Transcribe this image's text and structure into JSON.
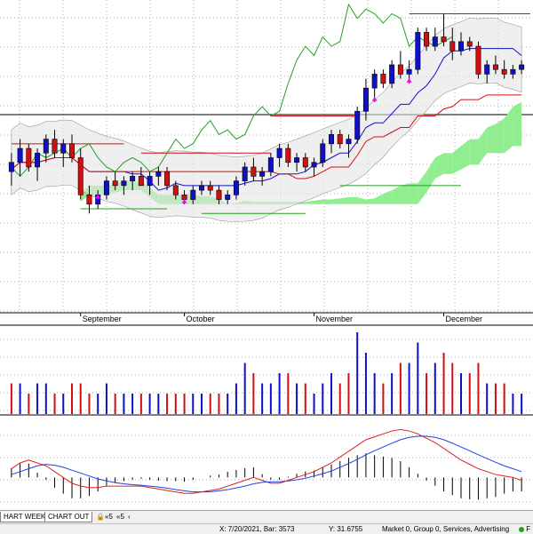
{
  "chart_data": [
    {
      "type": "candlestick",
      "title": "",
      "x_months": [
        "September",
        "October",
        "November",
        "December"
      ],
      "ylim": [
        29.2,
        35.8
      ],
      "grid": true,
      "candles": [
        [
          32.2,
          32.6,
          31.9,
          32.4
        ],
        [
          32.4,
          32.9,
          32.1,
          32.7
        ],
        [
          32.7,
          32.8,
          32.2,
          32.3
        ],
        [
          32.3,
          32.7,
          32.0,
          32.6
        ],
        [
          32.6,
          33.0,
          32.4,
          32.9
        ],
        [
          32.9,
          33.1,
          32.5,
          32.6
        ],
        [
          32.6,
          32.9,
          32.3,
          32.8
        ],
        [
          32.8,
          33.0,
          32.4,
          32.5
        ],
        [
          32.5,
          32.7,
          31.6,
          31.7
        ],
        [
          31.7,
          31.9,
          31.3,
          31.5
        ],
        [
          31.5,
          31.8,
          31.4,
          31.7
        ],
        [
          31.7,
          32.1,
          31.6,
          32.0
        ],
        [
          32.0,
          32.2,
          31.8,
          31.9
        ],
        [
          31.9,
          32.1,
          31.7,
          32.0
        ],
        [
          32.0,
          32.2,
          31.8,
          32.1
        ],
        [
          32.1,
          32.3,
          31.9,
          31.9
        ],
        [
          31.9,
          32.2,
          31.7,
          32.1
        ],
        [
          32.1,
          32.3,
          31.9,
          32.2
        ],
        [
          32.2,
          32.3,
          31.8,
          31.9
        ],
        [
          31.9,
          32.0,
          31.6,
          31.7
        ],
        [
          31.7,
          31.8,
          31.5,
          31.6
        ],
        [
          31.6,
          31.9,
          31.5,
          31.8
        ],
        [
          31.8,
          32.0,
          31.7,
          31.9
        ],
        [
          31.9,
          32.0,
          31.7,
          31.8
        ],
        [
          31.8,
          31.9,
          31.5,
          31.6
        ],
        [
          31.6,
          31.8,
          31.5,
          31.7
        ],
        [
          31.7,
          32.1,
          31.6,
          32.0
        ],
        [
          32.0,
          32.4,
          31.9,
          32.3
        ],
        [
          32.3,
          32.5,
          32.0,
          32.1
        ],
        [
          32.1,
          32.3,
          31.9,
          32.2
        ],
        [
          32.2,
          32.6,
          32.1,
          32.5
        ],
        [
          32.5,
          32.8,
          32.3,
          32.7
        ],
        [
          32.7,
          32.8,
          32.3,
          32.4
        ],
        [
          32.4,
          32.6,
          32.2,
          32.5
        ],
        [
          32.5,
          32.6,
          32.2,
          32.3
        ],
        [
          32.3,
          32.5,
          32.1,
          32.4
        ],
        [
          32.4,
          32.9,
          32.3,
          32.8
        ],
        [
          32.8,
          33.1,
          32.6,
          33.0
        ],
        [
          33.0,
          33.1,
          32.7,
          32.8
        ],
        [
          32.8,
          33.0,
          32.5,
          32.9
        ],
        [
          32.9,
          33.6,
          32.8,
          33.5
        ],
        [
          33.5,
          34.2,
          33.3,
          34.0
        ],
        [
          34.0,
          34.4,
          33.7,
          34.3
        ],
        [
          34.3,
          34.4,
          34.0,
          34.1
        ],
        [
          34.1,
          34.6,
          34.0,
          34.5
        ],
        [
          34.5,
          34.8,
          34.2,
          34.3
        ],
        [
          34.3,
          34.6,
          34.1,
          34.4
        ],
        [
          34.4,
          35.3,
          34.3,
          35.2
        ],
        [
          35.2,
          35.3,
          34.8,
          34.9
        ],
        [
          34.9,
          35.3,
          34.8,
          35.1
        ],
        [
          35.1,
          35.6,
          34.9,
          35.0
        ],
        [
          35.0,
          35.3,
          34.6,
          34.8
        ],
        [
          34.8,
          35.2,
          34.7,
          35.0
        ],
        [
          35.0,
          35.1,
          34.8,
          34.9
        ],
        [
          34.9,
          35.0,
          34.2,
          34.3
        ],
        [
          34.3,
          34.6,
          34.1,
          34.5
        ],
        [
          34.5,
          34.7,
          34.3,
          34.4
        ],
        [
          34.4,
          34.6,
          34.2,
          34.3
        ],
        [
          34.3,
          34.5,
          34.2,
          34.4
        ],
        [
          34.4,
          34.6,
          34.3,
          34.5
        ]
      ],
      "volume": [
        [
          3,
          "r"
        ],
        [
          3,
          "b"
        ],
        [
          2,
          "r"
        ],
        [
          3,
          "b"
        ],
        [
          3,
          "b"
        ],
        [
          2,
          "r"
        ],
        [
          2,
          "b"
        ],
        [
          3,
          "r"
        ],
        [
          3,
          "r"
        ],
        [
          2,
          "r"
        ],
        [
          2,
          "b"
        ],
        [
          3,
          "b"
        ],
        [
          2,
          "r"
        ],
        [
          2,
          "b"
        ],
        [
          2,
          "b"
        ],
        [
          2,
          "r"
        ],
        [
          2,
          "b"
        ],
        [
          2,
          "b"
        ],
        [
          2,
          "r"
        ],
        [
          2,
          "r"
        ],
        [
          2,
          "r"
        ],
        [
          2,
          "b"
        ],
        [
          2,
          "b"
        ],
        [
          2,
          "r"
        ],
        [
          2,
          "r"
        ],
        [
          2,
          "b"
        ],
        [
          3,
          "b"
        ],
        [
          5,
          "b"
        ],
        [
          4,
          "r"
        ],
        [
          3,
          "b"
        ],
        [
          3,
          "b"
        ],
        [
          4,
          "b"
        ],
        [
          4,
          "r"
        ],
        [
          3,
          "b"
        ],
        [
          3,
          "r"
        ],
        [
          2,
          "b"
        ],
        [
          3,
          "b"
        ],
        [
          4,
          "b"
        ],
        [
          3,
          "r"
        ],
        [
          4,
          "r"
        ],
        [
          8,
          "b"
        ],
        [
          6,
          "b"
        ],
        [
          4,
          "b"
        ],
        [
          3,
          "r"
        ],
        [
          4,
          "b"
        ],
        [
          5,
          "r"
        ],
        [
          5,
          "b"
        ],
        [
          7,
          "b"
        ],
        [
          4,
          "r"
        ],
        [
          5,
          "b"
        ],
        [
          6,
          "r"
        ],
        [
          5,
          "r"
        ],
        [
          4,
          "b"
        ],
        [
          4,
          "r"
        ],
        [
          5,
          "r"
        ],
        [
          3,
          "b"
        ],
        [
          3,
          "r"
        ],
        [
          3,
          "r"
        ],
        [
          2,
          "b"
        ],
        [
          2,
          "b"
        ]
      ],
      "macd": [
        0.3,
        0.5,
        0.6,
        0.5,
        0.4,
        0.2,
        0.0,
        -0.2,
        -0.3,
        -0.35,
        -0.35,
        -0.3,
        -0.3,
        -0.3,
        -0.3,
        -0.3,
        -0.35,
        -0.4,
        -0.45,
        -0.5,
        -0.55,
        -0.55,
        -0.5,
        -0.45,
        -0.4,
        -0.3,
        -0.2,
        -0.1,
        0.0,
        -0.1,
        -0.2,
        -0.2,
        -0.1,
        0.0,
        0.1,
        0.2,
        0.35,
        0.5,
        0.7,
        0.9,
        1.1,
        1.3,
        1.4,
        1.5,
        1.6,
        1.65,
        1.6,
        1.5,
        1.35,
        1.2,
        1.0,
        0.8,
        0.6,
        0.45,
        0.3,
        0.2,
        0.1,
        0.05,
        0.0,
        -0.1
      ],
      "signal": [
        0.1,
        0.2,
        0.3,
        0.4,
        0.45,
        0.42,
        0.35,
        0.25,
        0.15,
        0.05,
        -0.05,
        -0.12,
        -0.18,
        -0.22,
        -0.25,
        -0.27,
        -0.3,
        -0.33,
        -0.37,
        -0.42,
        -0.46,
        -0.5,
        -0.5,
        -0.49,
        -0.46,
        -0.42,
        -0.36,
        -0.3,
        -0.22,
        -0.17,
        -0.15,
        -0.15,
        -0.12,
        -0.08,
        -0.03,
        0.05,
        0.13,
        0.22,
        0.35,
        0.48,
        0.62,
        0.78,
        0.92,
        1.05,
        1.18,
        1.3,
        1.38,
        1.42,
        1.42,
        1.38,
        1.3,
        1.18,
        1.05,
        0.92,
        0.78,
        0.65,
        0.52,
        0.4,
        0.3,
        0.2
      ]
    }
  ],
  "tabs": [
    "HART WEEK",
    "CHART OUT"
  ],
  "tab_nav": [
    "«5",
    "«5",
    "‹"
  ],
  "status": {
    "x_readout": "X: 7/20/2021, Bar: 3573",
    "y_readout": "Y: 31.6755",
    "groups": "Market 0, Group 0, Services, Advertising",
    "right_label": "F"
  },
  "colors": {
    "up": "#1010c8",
    "down": "#d01010",
    "cloud_bull": "#90ee90",
    "cloud_bear": "#f4a460",
    "tenkan": "#1010c8",
    "kijun": "#d01010",
    "chikou": "#21a121"
  }
}
